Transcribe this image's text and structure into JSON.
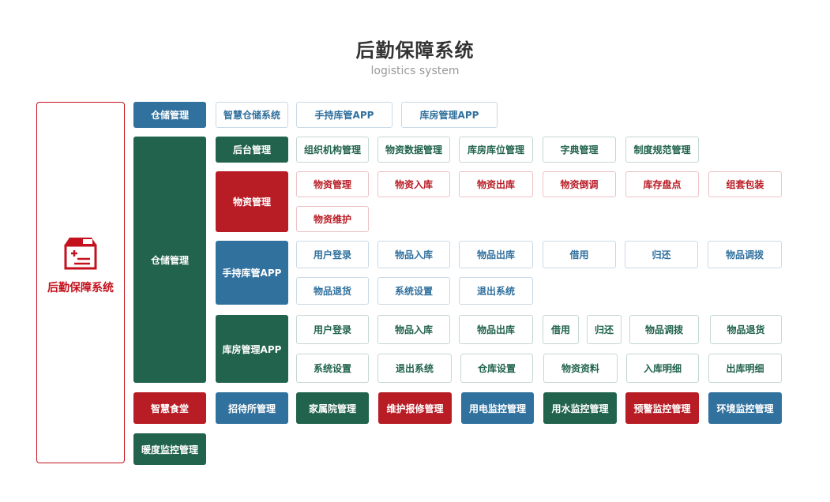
{
  "header": {
    "title": "后勤保障系统",
    "subtitle": "logistics system"
  },
  "root": {
    "label": "后勤保障系统",
    "icon": "medical-box-icon"
  },
  "colors": {
    "blue": "#31719e",
    "green": "#21634c",
    "red": "#b81c25"
  },
  "row1": {
    "label": "仓储管理",
    "items": [
      "智慧仓储系统",
      "手持库管APP",
      "库房管理APP"
    ]
  },
  "warehouse": {
    "label": "仓储管理",
    "backend": {
      "label": "后台管理",
      "items": [
        "组织机构管理",
        "物资数据管理",
        "库房库位管理",
        "字典管理",
        "制度规范管理"
      ]
    },
    "material": {
      "label": "物资管理",
      "items": [
        "物资管理",
        "物资入库",
        "物资出库",
        "物资倒调",
        "库存盘点",
        "组套包装",
        "物资维护"
      ]
    },
    "handheld": {
      "label": "手持库管APP",
      "items": [
        "用户登录",
        "物品入库",
        "物品出库",
        "借用",
        "归还",
        "物品调拨",
        "物品退货",
        "系统设置",
        "退出系统"
      ]
    },
    "storeroom": {
      "label": "库房管理APP",
      "items": [
        "用户登录",
        "物品入库",
        "物品出库",
        "借用",
        "归还",
        "物品调拨",
        "物品退货",
        "系统设置",
        "退出系统",
        "仓库设置",
        "物资资料",
        "入库明细",
        "出库明细"
      ]
    }
  },
  "bottom": [
    "智慧食堂",
    "招待所管理",
    "家属院管理",
    "维护报修管理",
    "用电监控管理",
    "用水监控管理",
    "预警监控管理",
    "环境监控管理",
    "暖度监控管理"
  ]
}
